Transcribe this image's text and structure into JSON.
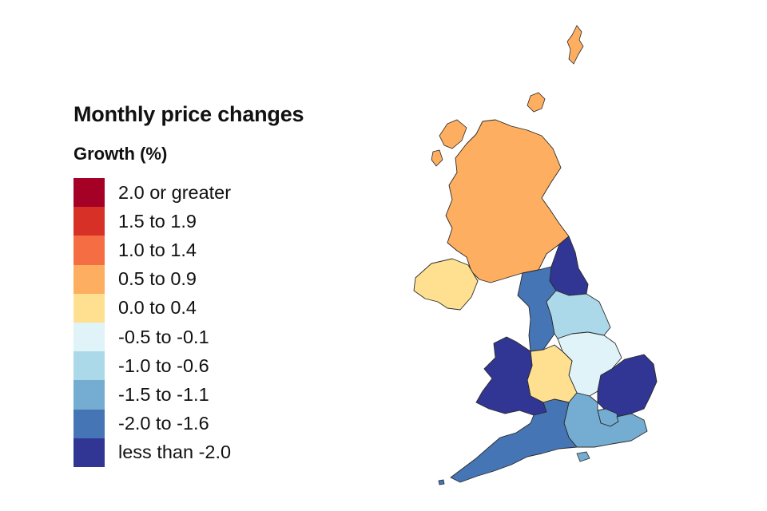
{
  "legend": {
    "title": "Monthly price changes",
    "subtitle": "Growth (%)",
    "items": [
      {
        "label": "2.0 or greater",
        "color": "#a50026"
      },
      {
        "label": "1.5 to 1.9",
        "color": "#d73027"
      },
      {
        "label": "1.0 to 1.4",
        "color": "#f46d43"
      },
      {
        "label": "0.5 to 0.9",
        "color": "#fdae61"
      },
      {
        "label": "0.0 to 0.4",
        "color": "#fee090"
      },
      {
        "label": "-0.5 to -0.1",
        "color": "#e0f3f8"
      },
      {
        "label": "-1.0 to -0.6",
        "color": "#abd9e9"
      },
      {
        "label": "-1.5 to -1.1",
        "color": "#74add1"
      },
      {
        "label": "-2.0 to -1.6",
        "color": "#4575b4"
      },
      {
        "label": "less than -2.0",
        "color": "#313695"
      }
    ]
  },
  "regions": [
    {
      "name": "Scotland",
      "band": "0.5 to 0.9",
      "color": "#fdae61"
    },
    {
      "name": "Northern Ireland",
      "band": "0.0 to 0.4",
      "color": "#fee090"
    },
    {
      "name": "North East",
      "band": "less than -2.0",
      "color": "#313695"
    },
    {
      "name": "North West",
      "band": "-2.0 to -1.6",
      "color": "#4575b4"
    },
    {
      "name": "Yorkshire and The Humber",
      "band": "-1.0 to -0.6",
      "color": "#abd9e9"
    },
    {
      "name": "East Midlands",
      "band": "-0.5 to -0.1",
      "color": "#e0f3f8"
    },
    {
      "name": "West Midlands",
      "band": "0.0 to 0.4",
      "color": "#fee090"
    },
    {
      "name": "Wales",
      "band": "less than -2.0",
      "color": "#313695"
    },
    {
      "name": "East of England",
      "band": "less than -2.0",
      "color": "#313695"
    },
    {
      "name": "London",
      "band": "-1.5 to -1.1",
      "color": "#74add1"
    },
    {
      "name": "South East",
      "band": "-1.5 to -1.1",
      "color": "#74add1"
    },
    {
      "name": "South West",
      "band": "-2.0 to -1.6",
      "color": "#4575b4"
    }
  ]
}
